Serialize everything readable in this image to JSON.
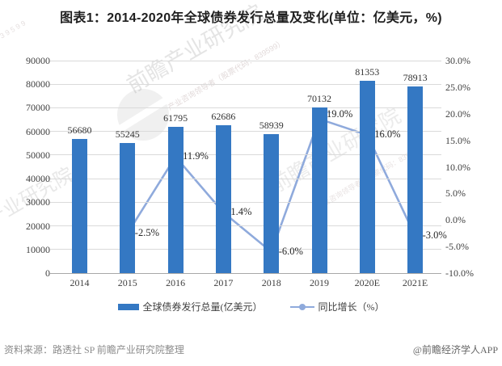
{
  "title": "图表1：2014-2020年全球债券发行总量及变化(单位：亿美元，%)",
  "chart_data": {
    "type": "bar",
    "subtype": "bar+line-combo",
    "categories": [
      "2014",
      "2015",
      "2016",
      "2017",
      "2018",
      "2019",
      "2020E",
      "2021E"
    ],
    "series": [
      {
        "name": "全球债券发行总量(亿美元）",
        "type": "bar",
        "color": "#3478C3",
        "values": [
          56680,
          55245,
          61795,
          62686,
          58939,
          70132,
          81353,
          78913
        ],
        "labels": [
          "56680",
          "55245",
          "61795",
          "62686",
          "58939",
          "70132",
          "81353",
          "78913"
        ]
      },
      {
        "name": "同比增长（%）",
        "type": "line",
        "color": "#8FAADC",
        "marker_stroke": "#7B97CD",
        "values": [
          null,
          -2.5,
          11.9,
          1.4,
          -6.0,
          19.0,
          16.0,
          -3.0
        ],
        "labels": [
          "",
          "-2.5%",
          "11.9%",
          "1.4%",
          "-6.0%",
          "19.0%",
          "16.0%",
          "-3.0%"
        ]
      }
    ],
    "left_axis": {
      "min": 0,
      "max": 90000,
      "step": 10000,
      "ticks": [
        "0",
        "10000",
        "20000",
        "30000",
        "40000",
        "50000",
        "60000",
        "70000",
        "80000",
        "90000"
      ]
    },
    "right_axis": {
      "min": -10,
      "max": 30,
      "step": 5,
      "ticks": [
        "-10.0%",
        "-5.0%",
        "0.0%",
        "5.0%",
        "10.0%",
        "15.0%",
        "20.0%",
        "25.0%",
        "30.0%"
      ]
    },
    "grid": true,
    "legend_position": "bottom"
  },
  "footer": {
    "source": "资料来源：路透社 SP 前瞻产业研究院整理",
    "brand": "@前瞻经济学人APP"
  },
  "watermark": {
    "brand": "前瞻产业研究院",
    "tagline": "产业咨询领导者（股票代码：839599）",
    "digits": "8 3 9 5 9 9"
  }
}
